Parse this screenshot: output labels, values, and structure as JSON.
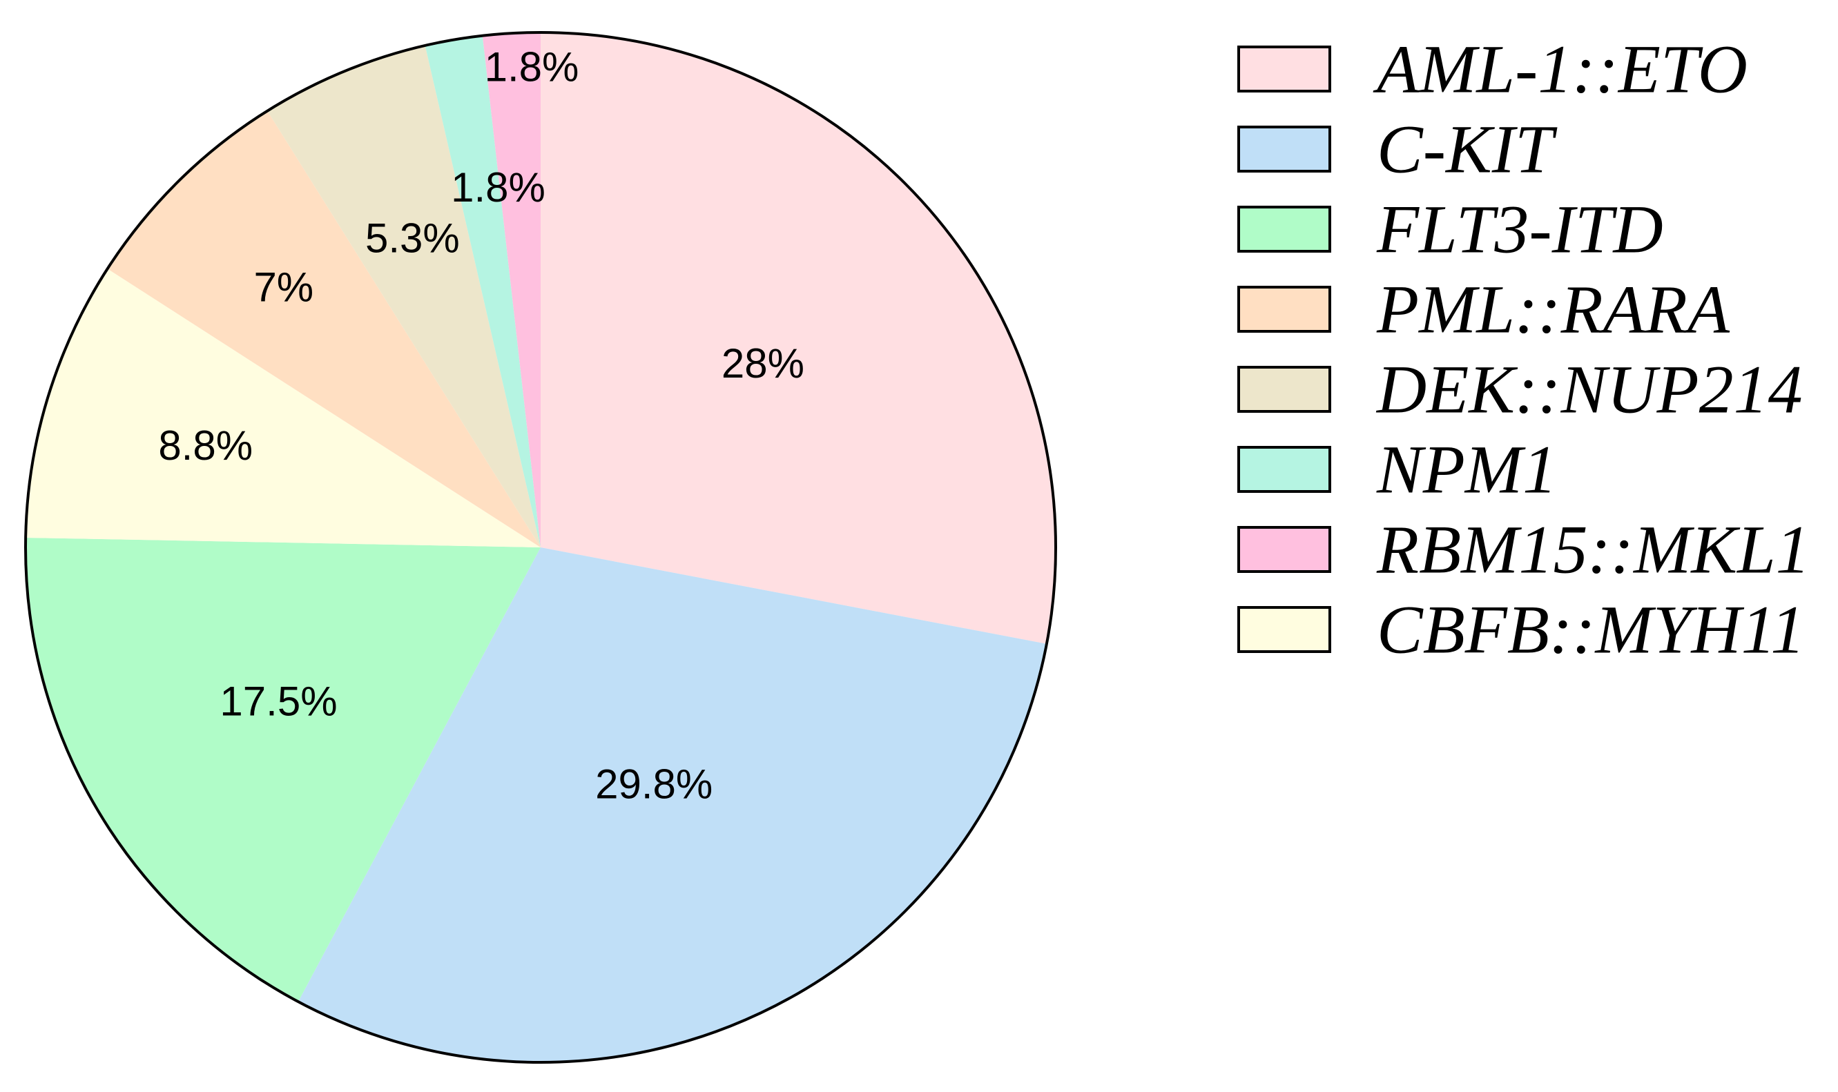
{
  "chart_data": {
    "type": "pie",
    "title": "",
    "legend_position": "right",
    "slices": [
      {
        "label": "AML-1::ETO",
        "value": 28,
        "value_label": "28%",
        "color": "#ffdfe2"
      },
      {
        "label": "C-KIT",
        "value": 29.8,
        "value_label": "29.8%",
        "color": "#c0dff7"
      },
      {
        "label": "FLT3-ITD",
        "value": 17.5,
        "value_label": "17.5%",
        "color": "#b0fcc8"
      },
      {
        "label": "CBFB::MYH11",
        "value": 8.8,
        "value_label": "8.8%",
        "color": "#fffde0"
      },
      {
        "label": "PML::RARA",
        "value": 7,
        "value_label": "7%",
        "color": "#ffdfc2"
      },
      {
        "label": "DEK::NUP214",
        "value": 5.3,
        "value_label": "5.3%",
        "color": "#ede6cb"
      },
      {
        "label": "NPM1",
        "value": 1.8,
        "value_label": "",
        "color": "#b5f4e2"
      },
      {
        "label": "RBM15::MKL1",
        "value": 1.8,
        "value_label": "1.8%",
        "color": "#ffc0df"
      }
    ],
    "extra_labels": [
      "1.8%"
    ],
    "legend": [
      {
        "label": "AML-1::ETO",
        "color": "#ffdfe2"
      },
      {
        "label": "C-KIT",
        "color": "#c0dff7"
      },
      {
        "label": "FLT3-ITD",
        "color": "#b0fcc8"
      },
      {
        "label": "PML::RARA",
        "color": "#ffdfc2"
      },
      {
        "label": "DEK::NUP214",
        "color": "#ede6cb"
      },
      {
        "label": "NPM1",
        "color": "#b5f4e2"
      },
      {
        "label": "RBM15::MKL1",
        "color": "#ffc0df"
      },
      {
        "label": "CBFB::MYH11",
        "color": "#fffde0"
      }
    ]
  }
}
